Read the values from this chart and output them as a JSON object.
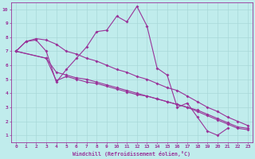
{
  "xlabel": "Windchill (Refroidissement éolien,°C)",
  "bg_color": "#c0ecec",
  "grid_color": "#a8d8d8",
  "line_color": "#993399",
  "markersize": 2.0,
  "linewidth": 0.8,
  "xlim": [
    -0.5,
    23.5
  ],
  "ylim": [
    0.5,
    10.5
  ],
  "xticks": [
    0,
    1,
    2,
    3,
    4,
    5,
    6,
    7,
    8,
    9,
    10,
    11,
    12,
    13,
    14,
    15,
    16,
    17,
    18,
    19,
    20,
    21,
    22,
    23
  ],
  "yticks": [
    1,
    2,
    3,
    4,
    5,
    6,
    7,
    8,
    9,
    10
  ],
  "series1_x": [
    0,
    1,
    2,
    3,
    4,
    5,
    6,
    7,
    8,
    9,
    10,
    11,
    12,
    13,
    14,
    15,
    16,
    17,
    18,
    19,
    20,
    21
  ],
  "series1_y": [
    7.0,
    7.7,
    7.8,
    7.0,
    4.8,
    5.7,
    6.5,
    7.3,
    8.4,
    8.5,
    9.5,
    9.1,
    10.2,
    8.8,
    5.8,
    5.3,
    3.0,
    3.3,
    2.3,
    1.3,
    1.0,
    1.5
  ],
  "series2_x": [
    0,
    1,
    2,
    3,
    4,
    5,
    6,
    7,
    8,
    9,
    10,
    11,
    12,
    13,
    14,
    15,
    16,
    17,
    18,
    19,
    20,
    21,
    22,
    23
  ],
  "series2_y": [
    7.0,
    7.7,
    7.9,
    7.8,
    7.5,
    7.0,
    6.8,
    6.5,
    6.3,
    6.0,
    5.7,
    5.5,
    5.2,
    5.0,
    4.7,
    4.4,
    4.2,
    3.8,
    3.4,
    3.0,
    2.7,
    2.3,
    2.0,
    1.7
  ],
  "series3_x": [
    0,
    3,
    4,
    5,
    6,
    7,
    8,
    9,
    10,
    11,
    12,
    13,
    14,
    15,
    16,
    17,
    18,
    19,
    20,
    21,
    22,
    23
  ],
  "series3_y": [
    7.0,
    6.5,
    5.5,
    5.3,
    5.1,
    5.0,
    4.8,
    4.6,
    4.4,
    4.2,
    4.0,
    3.8,
    3.6,
    3.4,
    3.2,
    3.0,
    2.8,
    2.5,
    2.2,
    1.9,
    1.6,
    1.5
  ],
  "series4_x": [
    0,
    3,
    4,
    5,
    6,
    7,
    8,
    9,
    10,
    11,
    12,
    13,
    14,
    15,
    16,
    17,
    18,
    19,
    20,
    21,
    22,
    23
  ],
  "series4_y": [
    7.0,
    6.5,
    4.9,
    5.2,
    5.0,
    4.8,
    4.7,
    4.5,
    4.3,
    4.1,
    3.9,
    3.8,
    3.6,
    3.4,
    3.2,
    3.0,
    2.7,
    2.4,
    2.1,
    1.8,
    1.5,
    1.4
  ]
}
